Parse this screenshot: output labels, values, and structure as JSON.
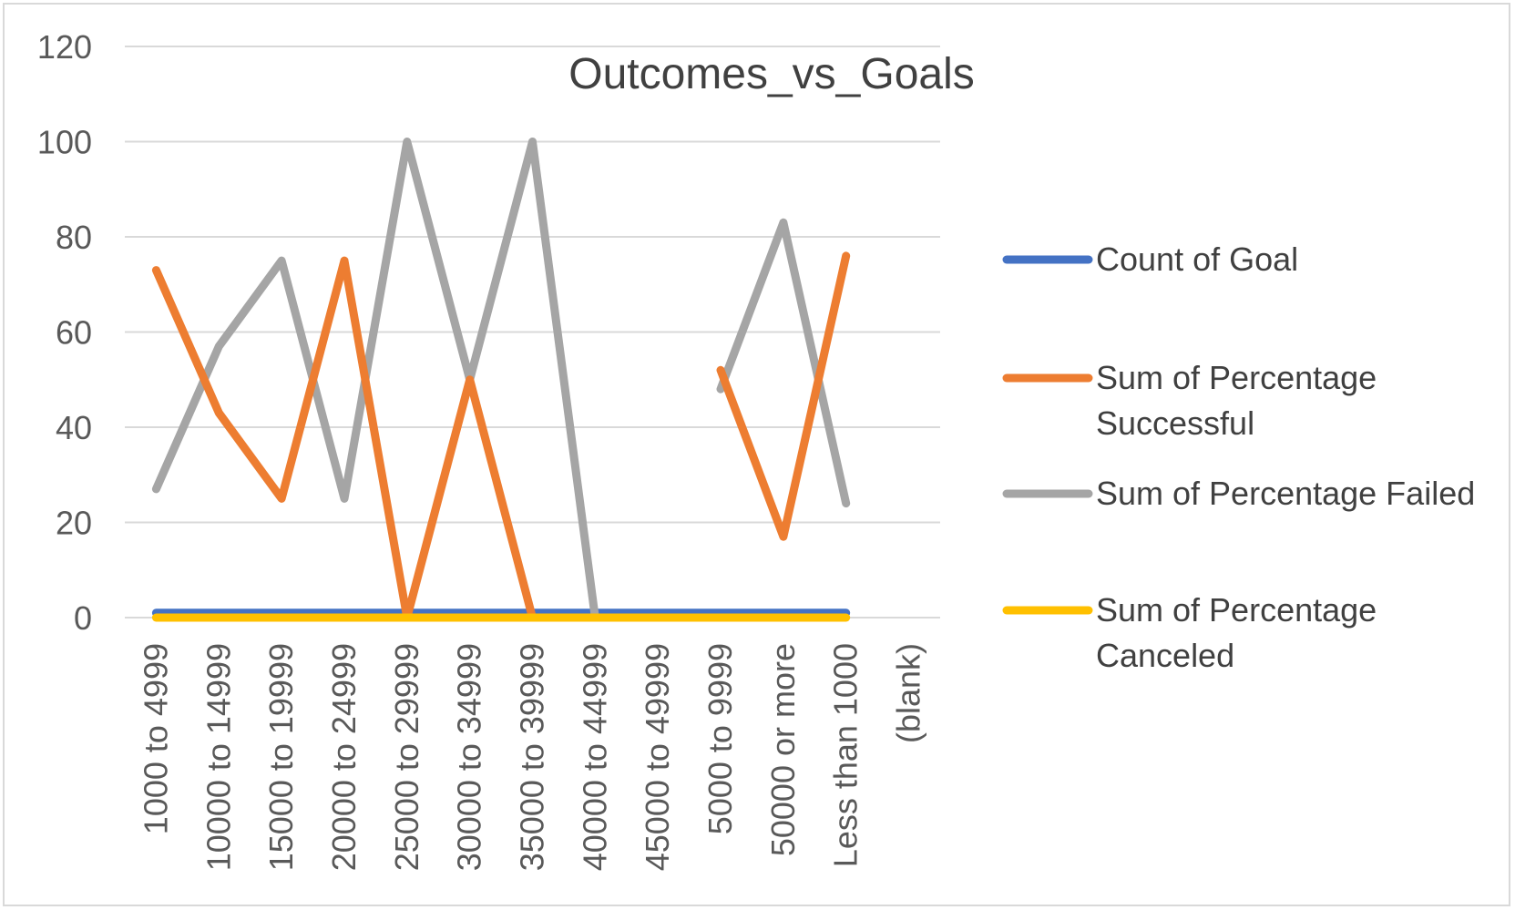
{
  "chart_data": {
    "type": "line",
    "title": "Outcomes_vs_Goals",
    "xlabel": "",
    "ylabel": "",
    "ylim": [
      0,
      120
    ],
    "yticks": [
      0,
      20,
      40,
      60,
      80,
      100,
      120
    ],
    "grid": true,
    "legend_position": "right",
    "categories": [
      "1000 to 4999",
      "10000 to 14999",
      "15000 to 19999",
      "20000 to 24999",
      "25000 to 29999",
      "30000 to 34999",
      "35000 to 39999",
      "40000 to 44999",
      "45000 to 49999",
      "5000 to 9999",
      "50000 or more",
      "Less than 1000",
      "(blank)"
    ],
    "series": [
      {
        "name": "Count of Goal",
        "color": "#4472c4",
        "values": [
          1,
          1,
          1,
          1,
          1,
          1,
          1,
          1,
          1,
          1,
          1,
          1,
          null
        ]
      },
      {
        "name": "Sum of Percentage Successful",
        "legend_lines": [
          "Sum of Percentage",
          "Successful"
        ],
        "color": "#ed7d31",
        "values": [
          73,
          43,
          25,
          75,
          0,
          50,
          0,
          null,
          null,
          52,
          17,
          76,
          null
        ]
      },
      {
        "name": "Sum of Percentage Failed",
        "legend_lines": [
          "Sum of Percentage Failed"
        ],
        "color": "#a5a5a5",
        "values": [
          27,
          57,
          75,
          25,
          100,
          50,
          100,
          0,
          null,
          48,
          83,
          24,
          null
        ]
      },
      {
        "name": "Sum of Percentage Canceled",
        "legend_lines": [
          "Sum of Percentage",
          "Canceled"
        ],
        "color": "#ffc000",
        "values": [
          0,
          0,
          0,
          0,
          0,
          0,
          0,
          0,
          0,
          0,
          0,
          0,
          null
        ]
      }
    ]
  }
}
